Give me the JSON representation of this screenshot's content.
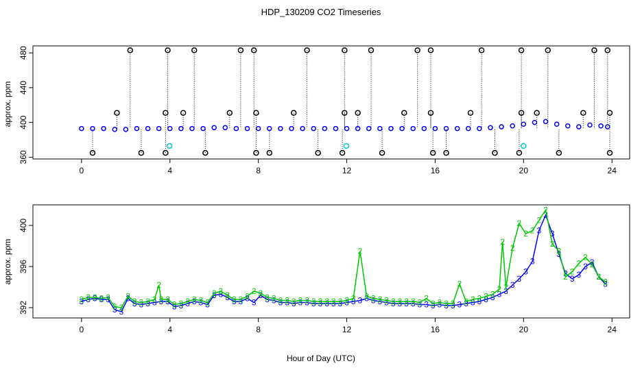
{
  "chart_data": [
    {
      "type": "scatter",
      "title": "HDP_130209  CO2 Timeseries",
      "xlabel": "",
      "ylabel": "approx. ppm",
      "xlim": [
        -2.2,
        24.8
      ],
      "ylim": [
        358,
        488
      ],
      "xticks": [
        0,
        4,
        8,
        12,
        16,
        20,
        24
      ],
      "yticks": [
        360,
        400,
        440,
        480
      ],
      "series": [
        {
          "name": "main",
          "color": "#0000ff",
          "marker": "circle",
          "x": [
            0,
            0.5,
            1,
            1.5,
            2,
            2.5,
            3,
            3.5,
            4,
            4.5,
            5,
            5.5,
            6,
            6.5,
            7,
            7.5,
            8,
            8.5,
            9,
            9.5,
            10,
            10.5,
            11,
            11.5,
            12,
            12.5,
            13,
            13.5,
            14,
            14.5,
            15,
            15.5,
            16,
            16.5,
            17,
            17.5,
            18,
            18.5,
            19,
            19.5,
            20,
            20.5,
            21,
            21.5,
            22,
            22.5,
            23,
            23.5,
            23.8
          ],
          "y": [
            393,
            393,
            393,
            392,
            392,
            393,
            393,
            393,
            393,
            393,
            393,
            393,
            394,
            394,
            393,
            393,
            393,
            393,
            393,
            393,
            393,
            393,
            393,
            393,
            393,
            393,
            393,
            393,
            393,
            393,
            393,
            393,
            393,
            393,
            393,
            393,
            393,
            394,
            395,
            396,
            398,
            400,
            401,
            398,
            396,
            395,
            397,
            396,
            395
          ]
        },
        {
          "name": "spikes_high",
          "color": "#000000",
          "marker": "circle",
          "x": [
            2.2,
            3.9,
            5.1,
            7.2,
            7.8,
            10.2,
            11.9,
            13.1,
            15.2,
            15.8,
            18.1,
            19.9,
            21.1,
            23.2,
            23.8
          ],
          "y": [
            483,
            483,
            483,
            483,
            483,
            483,
            483,
            483,
            483,
            483,
            483,
            483,
            483,
            483,
            483
          ]
        },
        {
          "name": "spikes_mid",
          "color": "#000000",
          "marker": "circle",
          "x": [
            1.6,
            3.8,
            4.6,
            6.7,
            7.9,
            9.6,
            11.9,
            12.5,
            14.6,
            15.8,
            17.6,
            19.9,
            20.6,
            22.7,
            23.9
          ],
          "y": [
            411,
            411,
            411,
            411,
            411,
            411,
            411,
            411,
            411,
            411,
            411,
            411,
            411,
            411,
            411
          ]
        },
        {
          "name": "spikes_low",
          "color": "#000000",
          "marker": "circle",
          "x": [
            0.5,
            2.7,
            3.8,
            5.6,
            7.9,
            8.5,
            10.7,
            11.8,
            13.6,
            15.9,
            16.5,
            18.7,
            19.8,
            21.6,
            23.9
          ],
          "y": [
            365,
            365,
            365,
            365,
            365,
            365,
            365,
            365,
            365,
            365,
            365,
            365,
            365,
            365,
            365
          ]
        },
        {
          "name": "cyan_markers",
          "color": "#00c8c8",
          "marker": "circle",
          "x": [
            3.98,
            11.98,
            20.0
          ],
          "y": [
            373,
            373,
            373
          ]
        }
      ]
    },
    {
      "type": "line",
      "title": "",
      "xlabel": "Hour of Day (UTC)",
      "ylabel": "approx. ppm",
      "xlim": [
        -2.2,
        24.8
      ],
      "ylim": [
        391,
        402
      ],
      "xticks": [
        0,
        4,
        8,
        12,
        16,
        20,
        24
      ],
      "yticks": [
        392,
        396,
        400
      ],
      "series": [
        {
          "name": "3",
          "color": "#0000ff",
          "marker": "3",
          "x": [
            0,
            0.3,
            0.6,
            0.9,
            1.2,
            1.5,
            1.8,
            2.1,
            2.4,
            2.7,
            3,
            3.3,
            3.6,
            3.9,
            4.2,
            4.5,
            4.8,
            5.1,
            5.4,
            5.7,
            6,
            6.3,
            6.6,
            6.9,
            7.2,
            7.5,
            7.8,
            8.1,
            8.4,
            8.7,
            9,
            9.3,
            9.6,
            9.9,
            10.2,
            10.5,
            10.8,
            11.1,
            11.4,
            11.7,
            12,
            12.3,
            12.6,
            12.9,
            13.2,
            13.5,
            13.8,
            14.1,
            14.4,
            14.7,
            15,
            15.3,
            15.6,
            15.9,
            16.2,
            16.5,
            16.8,
            17.1,
            17.4,
            17.7,
            18,
            18.3,
            18.6,
            18.9,
            19.2,
            19.5,
            19.8,
            20.1,
            20.4,
            20.7,
            21,
            21.3,
            21.6,
            21.9,
            22.2,
            22.5,
            22.8,
            23.1,
            23.4,
            23.7
          ],
          "y": [
            392.6,
            392.8,
            392.9,
            392.8,
            392.8,
            391.8,
            391.6,
            392.9,
            392.4,
            392.3,
            392.4,
            392.5,
            392.6,
            392.6,
            392.1,
            392.2,
            392.4,
            392.6,
            392.5,
            392.3,
            393.2,
            393.3,
            393,
            392.6,
            392.6,
            392.9,
            392.5,
            393.2,
            392.8,
            392.7,
            392.5,
            392.5,
            392.4,
            392.5,
            392.5,
            392.4,
            392.4,
            392.4,
            392.4,
            392.4,
            392.5,
            392.6,
            392.7,
            392.9,
            392.7,
            392.6,
            392.5,
            392.4,
            392.4,
            392.4,
            392.4,
            392.3,
            392.3,
            392.2,
            392.3,
            392.2,
            392.2,
            392.3,
            392.4,
            392.5,
            392.6,
            392.8,
            393,
            393.3,
            393.6,
            394.2,
            394.8,
            395.5,
            396.5,
            399.5,
            401,
            399.2,
            397.2,
            395.3,
            394.8,
            395.2,
            396,
            396.4,
            395,
            394.3
          ]
        },
        {
          "name": "2",
          "color": "#00c800",
          "marker": "2",
          "x": [
            0,
            0.3,
            0.6,
            0.9,
            1.2,
            1.5,
            1.8,
            2.1,
            2.4,
            2.7,
            3,
            3.3,
            3.5,
            3.6,
            3.9,
            4.2,
            4.5,
            4.8,
            5.1,
            5.4,
            5.7,
            6,
            6.3,
            6.6,
            6.9,
            7.2,
            7.5,
            7.8,
            8.1,
            8.4,
            8.7,
            9,
            9.3,
            9.6,
            9.9,
            10.2,
            10.5,
            10.8,
            11.1,
            11.4,
            11.7,
            12,
            12.3,
            12.6,
            12.9,
            13.2,
            13.5,
            13.8,
            14.1,
            14.4,
            14.7,
            15,
            15.3,
            15.6,
            15.9,
            16.2,
            16.5,
            16.8,
            17.1,
            17.4,
            17.7,
            18,
            18.3,
            18.6,
            18.9,
            19.05,
            19.2,
            19.5,
            19.8,
            20.1,
            20.4,
            20.7,
            21,
            21.3,
            21.6,
            21.9,
            22.2,
            22.5,
            22.8,
            23.1,
            23.4,
            23.7
          ],
          "y": [
            392.8,
            393,
            393,
            392.9,
            393,
            392.1,
            392,
            393.1,
            392.6,
            392.5,
            392.6,
            392.8,
            394.2,
            392.8,
            392.8,
            392.3,
            392.4,
            392.6,
            392.8,
            392.7,
            392.5,
            393.4,
            393.6,
            393.2,
            392.8,
            392.8,
            393.1,
            393.6,
            393.4,
            393,
            392.9,
            392.7,
            392.7,
            392.6,
            392.7,
            392.7,
            392.6,
            392.6,
            392.6,
            392.6,
            392.6,
            392.7,
            392.9,
            397.5,
            393.1,
            392.9,
            392.8,
            392.7,
            392.6,
            392.6,
            392.6,
            392.6,
            392.5,
            392.9,
            392.4,
            392.5,
            392.4,
            392.4,
            394.3,
            392.6,
            392.8,
            392.9,
            393.1,
            393.3,
            393.8,
            398.4,
            394,
            397.8,
            400.2,
            399.2,
            399.5,
            400.5,
            401.5,
            398.2,
            397.5,
            395,
            395.5,
            396.3,
            396.9,
            396.2,
            395,
            394.5
          ]
        }
      ]
    }
  ]
}
